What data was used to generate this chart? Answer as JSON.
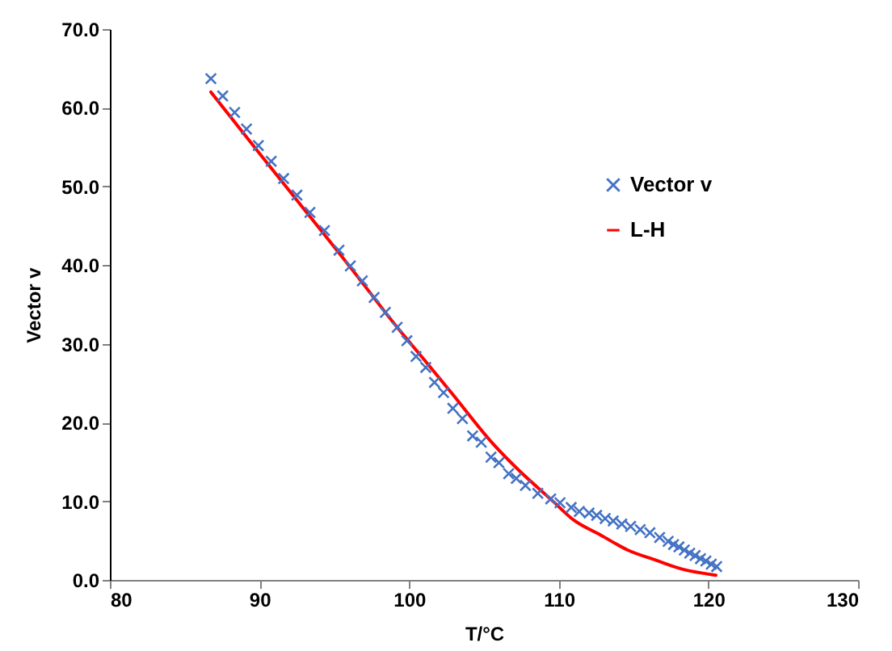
{
  "chart_data": {
    "type": "scatter",
    "xlabel": "T/°C",
    "ylabel": "Vector v",
    "xlim": [
      80,
      130
    ],
    "xticks": [
      80,
      90,
      100,
      110,
      120,
      130
    ],
    "ylim": [
      0,
      70
    ],
    "yticks": [
      {
        "value": 0,
        "label": "0.0"
      },
      {
        "value": 10,
        "label": "10.0"
      },
      {
        "value": 20,
        "label": "20.0"
      },
      {
        "value": 30,
        "label": "30.0"
      },
      {
        "value": 40,
        "label": "40.0"
      },
      {
        "value": 50,
        "label": "50.0"
      },
      {
        "value": 60,
        "label": "60.0"
      },
      {
        "value": 70,
        "label": "70.0"
      }
    ],
    "grid": false,
    "legend": "top right",
    "series": [
      {
        "name": "Vector v",
        "marker": "cross",
        "color": "#4472c4",
        "x": [
          86.75,
          87.54,
          88.34,
          89.13,
          89.92,
          90.78,
          91.61,
          92.5,
          93.37,
          94.34,
          95.31,
          96.07,
          96.87,
          97.66,
          98.41,
          99.2,
          99.85,
          100.46,
          101.11,
          101.69,
          102.3,
          102.92,
          103.56,
          104.24,
          104.82,
          105.47,
          106.0,
          106.65,
          107.16,
          107.77,
          108.6,
          109.46,
          110.08,
          110.83,
          111.37,
          112.02,
          112.53,
          113.1,
          113.64,
          114.21,
          114.8,
          115.44,
          116.09,
          116.74,
          117.31,
          117.67,
          118.03,
          118.39,
          118.75,
          119.11,
          119.47,
          119.83,
          120.19,
          120.55
        ],
        "values": [
          63.7,
          61.5,
          59.4,
          57.3,
          55.2,
          53.2,
          51.0,
          48.9,
          46.7,
          44.4,
          41.9,
          39.9,
          38.0,
          35.9,
          34.0,
          32.1,
          30.4,
          28.4,
          27.0,
          25.1,
          23.8,
          21.8,
          20.5,
          18.3,
          17.5,
          15.6,
          14.9,
          13.5,
          12.9,
          12.0,
          11.0,
          10.3,
          9.8,
          9.2,
          8.7,
          8.5,
          8.2,
          7.8,
          7.5,
          7.1,
          6.8,
          6.4,
          6.0,
          5.4,
          4.9,
          4.5,
          4.2,
          3.8,
          3.4,
          3.1,
          2.7,
          2.4,
          2.0,
          1.7
        ]
      },
      {
        "name": "L-H",
        "type": "line",
        "marker": "none",
        "line_style": "solid",
        "color": "#ff0000",
        "x": [
          86.75,
          90,
          93.4,
          96,
          99.2,
          101,
          102.9,
          105.6,
          107.4,
          109.5,
          111,
          112.8,
          114.6,
          116.5,
          118.2,
          120.5
        ],
        "values": [
          62.0,
          54.2,
          46.1,
          39.9,
          32.1,
          28.0,
          23.6,
          17.3,
          13.8,
          10.2,
          7.6,
          5.7,
          3.8,
          2.5,
          1.4,
          0.6
        ]
      }
    ]
  }
}
